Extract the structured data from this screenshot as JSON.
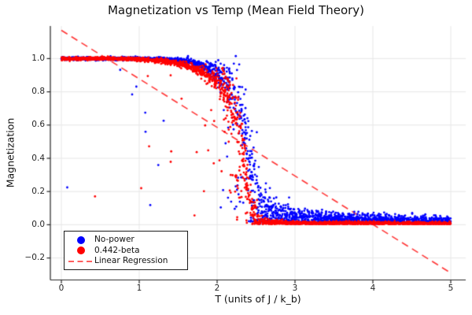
{
  "chart": {
    "title": "Magnetization vs Temp (Mean Field Theory)",
    "xlabel": "T (units of J / k_b)",
    "ylabel": "Magnetization",
    "x_tick_labels": [
      "0",
      "1",
      "2",
      "3",
      "4",
      "5"
    ],
    "y_tick_labels": [
      "1.0",
      "0.8",
      "0.6",
      "0.4",
      "0.2",
      "0.0",
      "−0.2"
    ]
  },
  "legend": {
    "items": [
      {
        "label": "No-power",
        "color": "#0000ff",
        "marker": "circle"
      },
      {
        "label": "0.442-beta",
        "color": "#ff0000",
        "marker": "circle"
      },
      {
        "label": "Linear Regression",
        "color": "#ff0000",
        "marker": "dashed-line"
      }
    ]
  },
  "chart_data": {
    "type": "scatter",
    "title": "Magnetization vs Temp (Mean Field Theory)",
    "xlabel": "T (units of J / k_b)",
    "ylabel": "Magnetization",
    "xlim": [
      -0.14,
      5.18
    ],
    "ylim": [
      -0.33,
      1.19
    ],
    "x_ticks": [
      0,
      1,
      2,
      3,
      4,
      5
    ],
    "y_ticks": [
      -0.2,
      0.0,
      0.2,
      0.4,
      0.6,
      0.8,
      1.0
    ],
    "grid": true,
    "legend_position": "lower left",
    "background": "#ffffff",
    "grid_color": "#e7e7e7",
    "spine_color": "#262626",
    "text_color": "#1a1a1a",
    "seed": 1337,
    "series": [
      {
        "name": "No-power",
        "color": "#0000ff",
        "n": 2600,
        "marker_radius": 1.4,
        "x_range": [
          0,
          5
        ],
        "mean_curve": [
          [
            0,
            1.0
          ],
          [
            1.0,
            1.0
          ],
          [
            1.3,
            0.995
          ],
          [
            1.6,
            0.985
          ],
          [
            1.8,
            0.962
          ],
          [
            2.0,
            0.912
          ],
          [
            2.1,
            0.872
          ],
          [
            2.2,
            0.815
          ],
          [
            2.3,
            0.7
          ],
          [
            2.35,
            0.6
          ],
          [
            2.4,
            0.46
          ],
          [
            2.45,
            0.33
          ],
          [
            2.5,
            0.21
          ],
          [
            2.6,
            0.115
          ],
          [
            2.8,
            0.062
          ],
          [
            3.0,
            0.044
          ],
          [
            3.5,
            0.032
          ],
          [
            4.0,
            0.027
          ],
          [
            4.5,
            0.023
          ],
          [
            5.0,
            0.021
          ]
        ],
        "noise_sigma": [
          [
            0,
            0.004
          ],
          [
            1.2,
            0.005
          ],
          [
            1.6,
            0.009
          ],
          [
            1.9,
            0.02
          ],
          [
            2.1,
            0.045
          ],
          [
            2.25,
            0.1
          ],
          [
            2.4,
            0.13
          ],
          [
            2.55,
            0.09
          ],
          [
            2.7,
            0.05
          ],
          [
            3.0,
            0.03
          ],
          [
            3.5,
            0.022
          ],
          [
            4.0,
            0.018
          ],
          [
            5.0,
            0.015
          ]
        ],
        "drop_outlier_prob": [
          [
            0,
            0
          ],
          [
            2.0,
            0.02
          ],
          [
            2.15,
            0.18
          ],
          [
            2.3,
            0.32
          ],
          [
            2.45,
            0.34
          ],
          [
            2.6,
            0.22
          ],
          [
            2.8,
            0.08
          ],
          [
            3.0,
            0.02
          ],
          [
            5.0,
            0.01
          ]
        ],
        "floor_fold": [
          [
            0,
            0.01
          ],
          [
            2.4,
            0.05
          ],
          [
            3.0,
            0.032
          ],
          [
            4.0,
            0.022
          ],
          [
            5.0,
            0.016
          ]
        ]
      },
      {
        "name": "0.442-beta",
        "color": "#ff0000",
        "n": 2600,
        "marker_radius": 1.4,
        "x_range": [
          0,
          5
        ],
        "mean_curve": [
          [
            0,
            1.0
          ],
          [
            0.8,
            1.0
          ],
          [
            1.1,
            0.993
          ],
          [
            1.4,
            0.978
          ],
          [
            1.6,
            0.958
          ],
          [
            1.8,
            0.925
          ],
          [
            2.0,
            0.855
          ],
          [
            2.1,
            0.795
          ],
          [
            2.2,
            0.71
          ],
          [
            2.25,
            0.645
          ],
          [
            2.3,
            0.53
          ],
          [
            2.35,
            0.38
          ],
          [
            2.4,
            0.2
          ],
          [
            2.45,
            0.09
          ],
          [
            2.5,
            0.035
          ],
          [
            2.6,
            0.012
          ],
          [
            3.0,
            0.008
          ],
          [
            4.0,
            0.007
          ],
          [
            5.0,
            0.006
          ]
        ],
        "noise_sigma": [
          [
            0,
            0.004
          ],
          [
            1.0,
            0.005
          ],
          [
            1.5,
            0.009
          ],
          [
            1.8,
            0.016
          ],
          [
            2.0,
            0.035
          ],
          [
            2.15,
            0.08
          ],
          [
            2.3,
            0.115
          ],
          [
            2.4,
            0.09
          ],
          [
            2.5,
            0.035
          ],
          [
            2.6,
            0.01
          ],
          [
            3.0,
            0.006
          ],
          [
            5.0,
            0.005
          ]
        ],
        "drop_outlier_prob": [
          [
            0,
            0
          ],
          [
            1.8,
            0.02
          ],
          [
            2.0,
            0.07
          ],
          [
            2.15,
            0.16
          ],
          [
            2.3,
            0.3
          ],
          [
            2.45,
            0.18
          ],
          [
            2.55,
            0.05
          ],
          [
            2.7,
            0.01
          ],
          [
            5.0,
            0.004
          ]
        ],
        "floor_fold": [
          [
            0,
            0.003
          ],
          [
            2.5,
            0.006
          ],
          [
            5.0,
            0.004
          ]
        ]
      }
    ],
    "regression_line": {
      "name": "Linear Regression",
      "color": "#ff2222",
      "dash": [
        9,
        6
      ],
      "line_width": 1.6,
      "x": [
        0,
        5
      ],
      "y": [
        1.17,
        -0.29
      ],
      "slope": -0.292,
      "intercept": 1.17
    }
  }
}
